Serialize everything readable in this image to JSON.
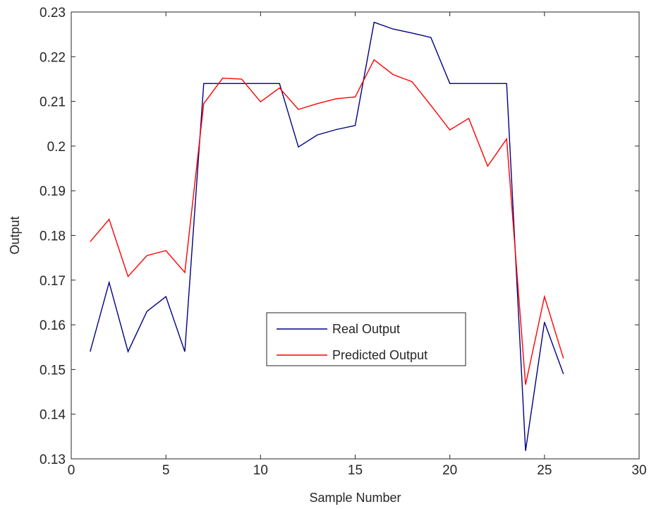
{
  "chart_data": {
    "type": "line",
    "title": "",
    "xlabel": "Sample Number",
    "ylabel": "Output",
    "xlim": [
      0,
      30
    ],
    "ylim": [
      0.13,
      0.23
    ],
    "xticks": [
      0,
      5,
      10,
      15,
      20,
      25,
      30
    ],
    "yticks": [
      0.13,
      0.14,
      0.15,
      0.16,
      0.17,
      0.18,
      0.19,
      0.2,
      0.21,
      0.22,
      0.23
    ],
    "xtick_labels": [
      "0",
      "5",
      "10",
      "15",
      "20",
      "25",
      "30"
    ],
    "ytick_labels": [
      "0.13",
      "0.14",
      "0.15",
      "0.16",
      "0.17",
      "0.18",
      "0.19",
      "0.2",
      "0.21",
      "0.22",
      "0.23"
    ],
    "grid": false,
    "legend_position": "center",
    "x": [
      1,
      2,
      3,
      4,
      5,
      6,
      7,
      8,
      9,
      10,
      11,
      12,
      13,
      14,
      15,
      16,
      17,
      18,
      19,
      20,
      21,
      22,
      23,
      24,
      25,
      26
    ],
    "series": [
      {
        "name": "Real Output",
        "color": "#000080",
        "values": [
          0.154,
          0.1695,
          0.154,
          0.163,
          0.1663,
          0.154,
          0.214,
          0.214,
          0.214,
          0.214,
          0.214,
          0.1998,
          0.2025,
          0.2037,
          0.2046,
          0.2277,
          0.2262,
          0.2253,
          0.2243,
          0.214,
          0.214,
          0.214,
          0.214,
          0.1318,
          0.1606,
          0.149
        ]
      },
      {
        "name": "Predicted Output",
        "color": "#ff0000",
        "values": [
          0.1786,
          0.1836,
          0.1708,
          0.1755,
          0.1766,
          0.1717,
          0.2095,
          0.2152,
          0.215,
          0.2099,
          0.213,
          0.2082,
          0.2095,
          0.2106,
          0.211,
          0.2193,
          0.216,
          0.2144,
          0.2091,
          0.2036,
          0.2062,
          0.1955,
          0.2016,
          0.1466,
          0.1663,
          0.1525
        ]
      }
    ]
  }
}
